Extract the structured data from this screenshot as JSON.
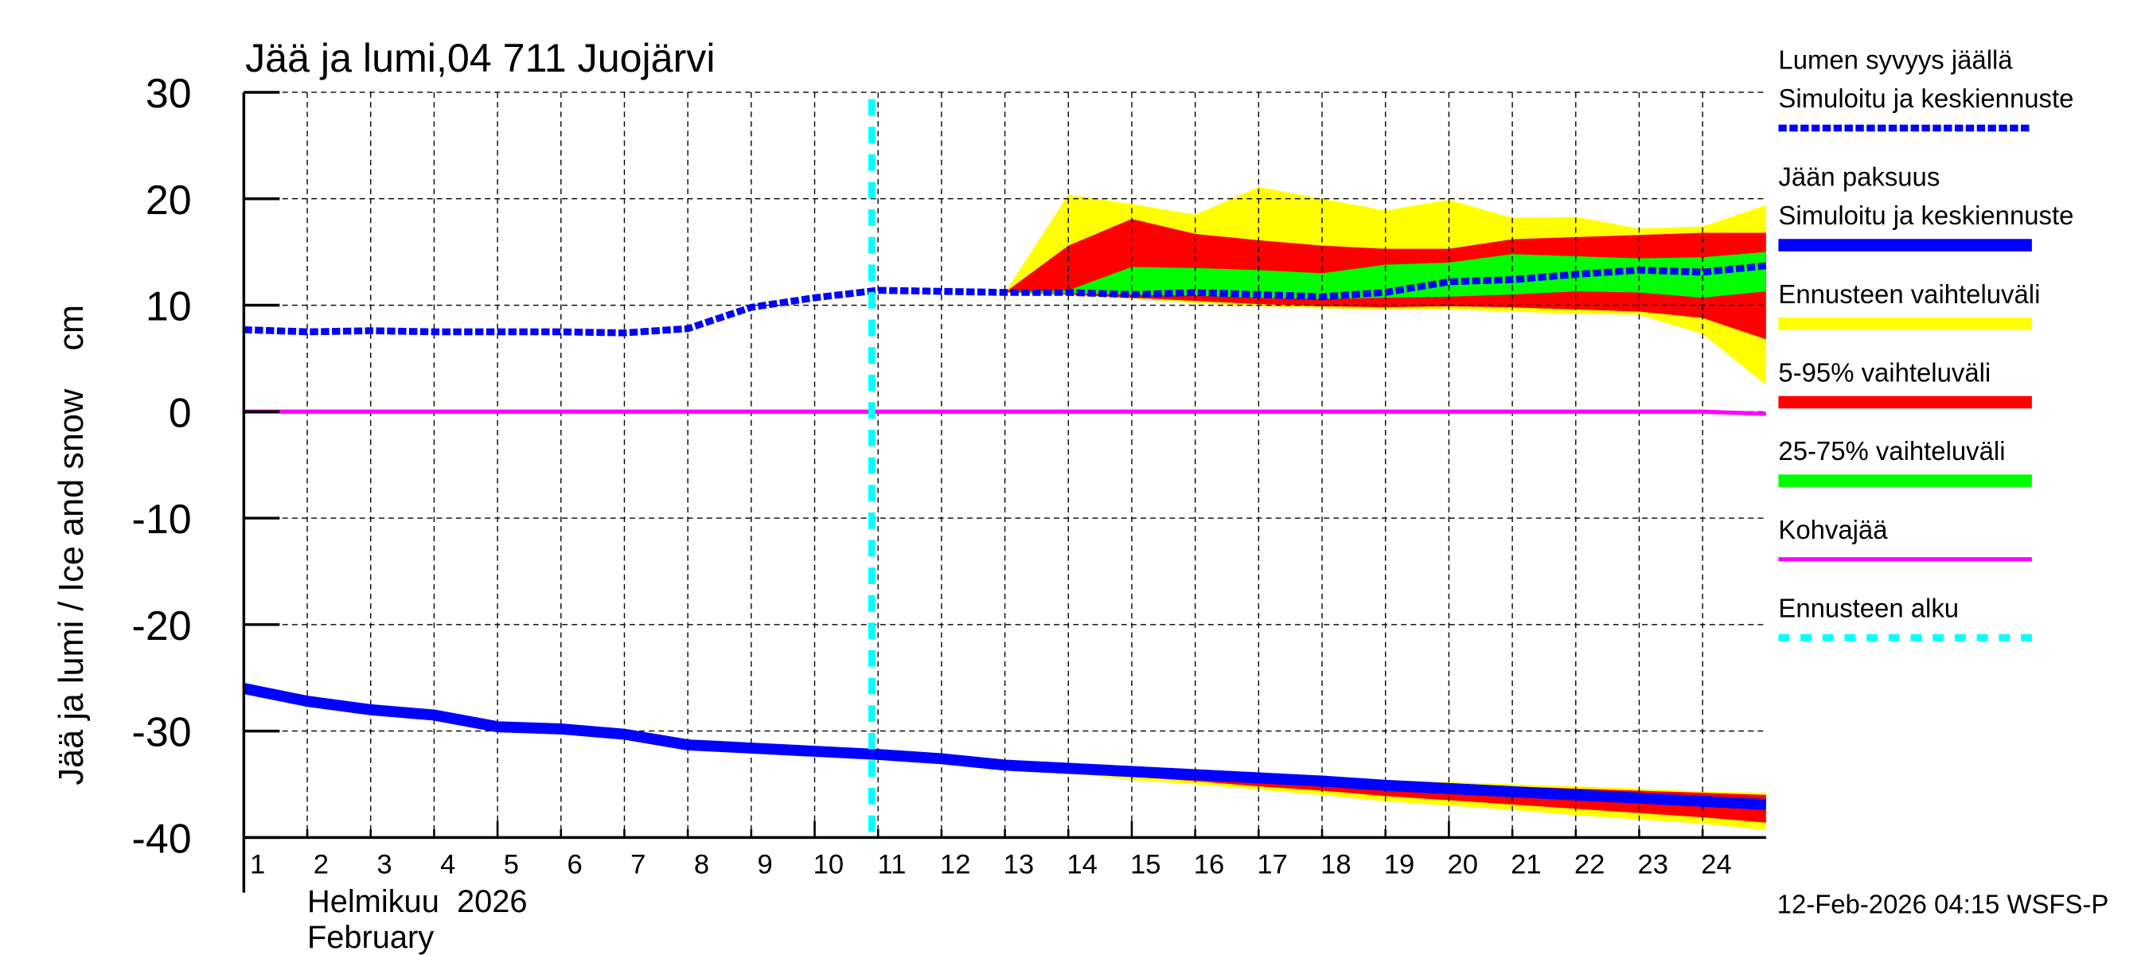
{
  "chart_data": {
    "type": "area",
    "title": "Jää ja lumi,04 711 Juojärvi",
    "ylabel": "Jää ja lumi / Ice and snow    cm",
    "xlabel_fi": "Helmikuu  2026",
    "xlabel_en": "February",
    "ylim": [
      -40,
      30
    ],
    "yticks": [
      30,
      20,
      10,
      0,
      -10,
      -20,
      -30,
      -40
    ],
    "xlim": [
      1,
      25
    ],
    "xticks": [
      1,
      2,
      3,
      4,
      5,
      6,
      7,
      8,
      9,
      10,
      11,
      12,
      13,
      14,
      15,
      16,
      17,
      18,
      19,
      20,
      21,
      22,
      23,
      24
    ],
    "grid": true,
    "legend_placement": "right",
    "forecast_start_day": 10.9,
    "footer": "12-Feb-2026 04:15 WSFS-P",
    "colors": {
      "snow": "#0000ff",
      "ice": "#0000ff",
      "range_full": "#ffff00",
      "range_5_95": "#ff0000",
      "range_25_75": "#00ff00",
      "slush": "#ff00ff",
      "forecast_start": "#00ffff"
    },
    "legend": [
      {
        "label1": "Lumen syvyys jäällä",
        "label2": "Simuloitu ja keskiennuste",
        "color": "#0000ff",
        "style": "dotted"
      },
      {
        "label1": "Jään paksuus",
        "label2": "Simuloitu ja keskiennuste",
        "color": "#0000ff",
        "style": "solid"
      },
      {
        "label1": "Ennusteen vaihteluväli",
        "color": "#ffff00",
        "style": "solid"
      },
      {
        "label1": "5-95% vaihteluväli",
        "color": "#ff0000",
        "style": "solid"
      },
      {
        "label1": "25-75% vaihteluväli",
        "color": "#00ff00",
        "style": "solid"
      },
      {
        "label1": "Kohvajää",
        "color": "#ff00ff",
        "style": "thin"
      },
      {
        "label1": "Ennusteen alku",
        "color": "#00ffff",
        "style": "dashed"
      }
    ],
    "x": [
      1,
      2,
      3,
      4,
      5,
      6,
      7,
      8,
      9,
      10,
      11,
      12,
      13,
      14,
      15,
      16,
      17,
      18,
      19,
      20,
      21,
      22,
      23,
      24,
      25
    ],
    "snow_depth": [
      7.7,
      7.5,
      7.6,
      7.5,
      7.5,
      7.5,
      7.4,
      7.8,
      9.8,
      10.7,
      11.4,
      11.3,
      11.2,
      11.2,
      11.0,
      11.2,
      11.0,
      10.8,
      11.2,
      12.2,
      12.4,
      12.9,
      13.3,
      13.1,
      13.7
    ],
    "ice_thickness": [
      -26.0,
      -27.2,
      -28.0,
      -28.5,
      -29.6,
      -29.8,
      -30.3,
      -31.3,
      -31.6,
      -31.9,
      -32.2,
      -32.6,
      -33.2,
      -33.5,
      -33.8,
      -34.1,
      -34.4,
      -34.7,
      -35.1,
      -35.4,
      -35.7,
      -36.0,
      -36.3,
      -36.6,
      -36.9
    ],
    "slush": [
      0,
      0,
      0,
      0,
      0,
      0,
      0,
      0,
      0,
      0,
      0,
      0,
      0,
      0,
      0,
      0,
      0,
      0,
      0,
      0,
      0,
      0,
      0,
      0,
      -0.2
    ],
    "band_x": [
      13,
      14,
      15,
      16,
      17,
      18,
      19,
      20,
      21,
      22,
      23,
      24,
      25
    ],
    "snow_bands": {
      "full_upper": [
        11.2,
        20.4,
        19.5,
        18.5,
        21.1,
        20.0,
        18.9,
        19.9,
        18.2,
        18.3,
        17.2,
        17.4,
        19.4
      ],
      "full_lower": [
        11.2,
        11.0,
        10.6,
        10.2,
        9.9,
        9.7,
        9.6,
        9.6,
        9.4,
        9.2,
        9.1,
        7.3,
        2.5
      ],
      "p5_95_upper": [
        11.2,
        15.6,
        18.1,
        16.7,
        16.1,
        15.6,
        15.3,
        15.3,
        16.2,
        16.4,
        16.6,
        16.8,
        16.8
      ],
      "p5_95_lower": [
        11.2,
        11.0,
        10.7,
        10.4,
        10.1,
        9.9,
        9.8,
        9.9,
        9.8,
        9.6,
        9.4,
        8.8,
        6.8
      ],
      "p25_75_upper": [
        11.2,
        11.4,
        13.6,
        13.5,
        13.3,
        13.0,
        13.8,
        14.0,
        14.8,
        14.6,
        14.4,
        14.5,
        15.0
      ],
      "p25_75_lower": [
        11.2,
        11.1,
        11.0,
        10.9,
        10.7,
        10.6,
        10.7,
        10.8,
        11.0,
        11.3,
        11.2,
        10.7,
        11.3
      ]
    },
    "ice_bands": {
      "full_upper": [
        -33.2,
        -33.4,
        -33.6,
        -33.8,
        -34.0,
        -34.3,
        -34.6,
        -34.8,
        -35.0,
        -35.2,
        -35.4,
        -35.7,
        -35.8
      ],
      "full_lower": [
        -33.2,
        -33.9,
        -34.6,
        -35.0,
        -35.5,
        -36.0,
        -36.6,
        -37.0,
        -37.4,
        -37.9,
        -38.3,
        -38.7,
        -39.3
      ],
      "p5_95_upper": [
        -33.2,
        -33.4,
        -33.7,
        -33.9,
        -34.1,
        -34.4,
        -34.7,
        -34.9,
        -35.2,
        -35.4,
        -35.6,
        -35.8,
        -36.0
      ],
      "p5_95_lower": [
        -33.2,
        -33.8,
        -34.3,
        -34.7,
        -35.2,
        -35.6,
        -36.1,
        -36.5,
        -36.9,
        -37.3,
        -37.7,
        -38.1,
        -38.6
      ],
      "p25_75_upper": [
        -33.2,
        -33.5,
        -33.8,
        -34.1,
        -34.4,
        -34.7,
        -35.0,
        -35.3,
        -35.6,
        -35.9,
        -36.2,
        -36.4,
        -36.6
      ],
      "p25_75_lower": [
        -33.2,
        -33.6,
        -33.9,
        -34.2,
        -34.6,
        -34.9,
        -35.3,
        -35.6,
        -36.0,
        -36.3,
        -36.7,
        -37.0,
        -37.3
      ]
    }
  }
}
